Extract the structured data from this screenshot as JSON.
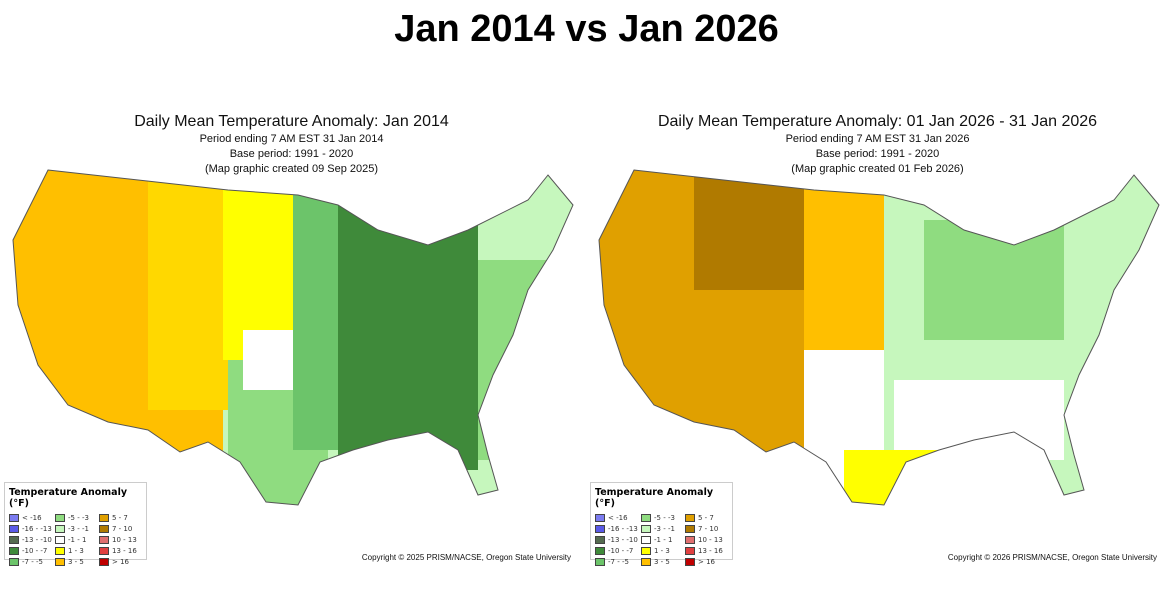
{
  "title": "Jan 2014 vs Jan 2026",
  "panels": [
    {
      "title": "Daily Mean Temperature Anomaly: Jan 2014",
      "period": "Period ending 7 AM EST 31 Jan 2014",
      "base": "Base period: 1991 - 2020",
      "created": "(Map graphic created 09 Sep 2025)",
      "copyright": "Copyright © 2025 PRISM/NACSE, Oregon State University"
    },
    {
      "title": "Daily Mean Temperature Anomaly: 01 Jan 2026 - 31 Jan 2026",
      "period": "Period ending 7 AM EST 31 Jan 2026",
      "base": "Base period: 1991 - 2020",
      "created": "(Map graphic created 01 Feb 2026)",
      "copyright": "Copyright © 2026 PRISM/NACSE, Oregon State University"
    }
  ],
  "legend": {
    "title": "Temperature Anomaly (°F)",
    "items": [
      {
        "label": "< -16",
        "color": "#7b7bf0"
      },
      {
        "label": "-16 - -13",
        "color": "#5a5ae8"
      },
      {
        "label": "-13 - -10",
        "color": "#556b50"
      },
      {
        "label": "-10 - -7",
        "color": "#3f8a3a"
      },
      {
        "label": "-7 - -5",
        "color": "#6cc46a"
      },
      {
        "label": "-5 - -3",
        "color": "#8fdc80"
      },
      {
        "label": "-3 - -1",
        "color": "#c6f7bd"
      },
      {
        "label": "-1 - 1",
        "color": "#ffffff"
      },
      {
        "label": "1 - 3",
        "color": "#ffff00"
      },
      {
        "label": "3 - 5",
        "color": "#ffbf00"
      },
      {
        "label": "5 - 7",
        "color": "#e0a000"
      },
      {
        "label": "7 - 10",
        "color": "#b07a00"
      },
      {
        "label": "10 - 13",
        "color": "#e07070"
      },
      {
        "label": "13 - 16",
        "color": "#e04040"
      },
      {
        "label": "> 16",
        "color": "#c00000"
      }
    ]
  }
}
